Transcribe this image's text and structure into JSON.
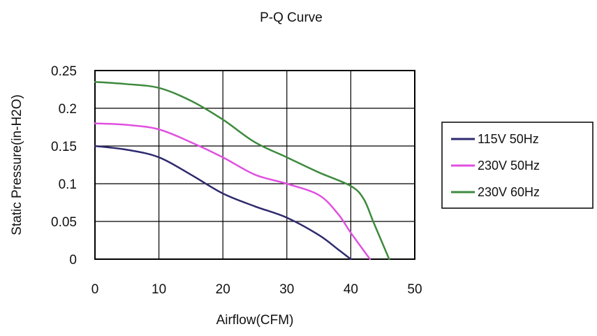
{
  "chart_data": {
    "type": "line",
    "title": "P-Q Curve",
    "xlabel": "Airflow(CFM)",
    "ylabel": "Static Pressure(in-H2O)",
    "xlim": [
      0,
      50
    ],
    "ylim": [
      0,
      0.25
    ],
    "x_ticks": [
      "0",
      "10",
      "20",
      "30",
      "40",
      "50"
    ],
    "y_ticks": [
      "0",
      "0.05",
      "0.1",
      "0.15",
      "0.2",
      "0.25"
    ],
    "grid": true,
    "legend_position": "right",
    "series": [
      {
        "name": "115V 50Hz",
        "color": "#2e2a6e",
        "points": [
          [
            0,
            0.15
          ],
          [
            5,
            0.145
          ],
          [
            10,
            0.135
          ],
          [
            15,
            0.112
          ],
          [
            20,
            0.087
          ],
          [
            25,
            0.07
          ],
          [
            30,
            0.055
          ],
          [
            35,
            0.032
          ],
          [
            38,
            0.013
          ],
          [
            40,
            0.0
          ]
        ]
      },
      {
        "name": "230V 50Hz",
        "color": "#e050e0",
        "points": [
          [
            0,
            0.18
          ],
          [
            5,
            0.178
          ],
          [
            10,
            0.172
          ],
          [
            15,
            0.155
          ],
          [
            20,
            0.135
          ],
          [
            25,
            0.112
          ],
          [
            30,
            0.1
          ],
          [
            35,
            0.085
          ],
          [
            38,
            0.06
          ],
          [
            40,
            0.035
          ],
          [
            43,
            0.0
          ]
        ]
      },
      {
        "name": "230V 60Hz",
        "color": "#3d8a3d",
        "points": [
          [
            0,
            0.235
          ],
          [
            5,
            0.232
          ],
          [
            10,
            0.227
          ],
          [
            15,
            0.21
          ],
          [
            20,
            0.185
          ],
          [
            25,
            0.155
          ],
          [
            30,
            0.135
          ],
          [
            35,
            0.115
          ],
          [
            40,
            0.097
          ],
          [
            42,
            0.08
          ],
          [
            43.5,
            0.05
          ],
          [
            45,
            0.02
          ],
          [
            46,
            0.0
          ]
        ]
      }
    ]
  }
}
